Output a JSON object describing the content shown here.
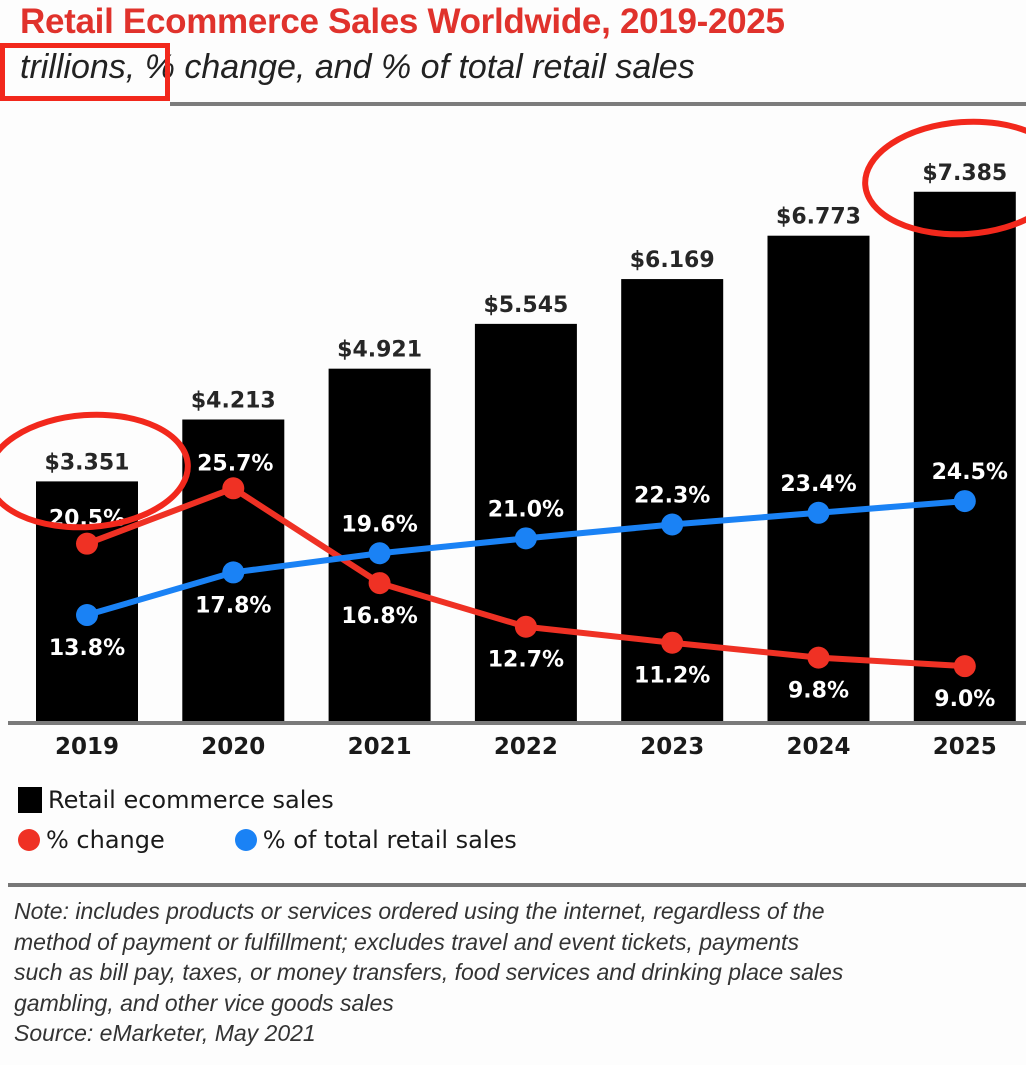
{
  "chart_data": {
    "type": "bar",
    "title": "Retail Ecommerce Sales Worldwide, 2019-2025",
    "subtitle_highlight": "trillions,",
    "subtitle_rest": " % change, and % of total retail sales",
    "categories": [
      "2019",
      "2020",
      "2021",
      "2022",
      "2023",
      "2024",
      "2025"
    ],
    "series": [
      {
        "name": "Retail ecommerce sales",
        "type": "bar",
        "unit": "trillions",
        "color": "#000000",
        "values": [
          3.351,
          4.213,
          4.921,
          5.545,
          6.169,
          6.773,
          7.385
        ],
        "labels": [
          "$3.351",
          "$4.213",
          "$4.921",
          "$5.545",
          "$6.169",
          "$6.773",
          "$7.385"
        ]
      },
      {
        "name": "% change",
        "type": "line",
        "color": "#ef3124",
        "values": [
          20.5,
          25.7,
          16.8,
          12.7,
          11.2,
          9.8,
          9.0
        ],
        "labels": [
          "20.5%",
          "25.7%",
          "16.8%",
          "12.7%",
          "11.2%",
          "9.8%",
          "9.0%"
        ]
      },
      {
        "name": "% of total retail sales",
        "type": "line",
        "color": "#1a82f5",
        "values": [
          13.8,
          17.8,
          19.6,
          21.0,
          22.3,
          23.4,
          24.5
        ],
        "labels": [
          "13.8%",
          "17.8%",
          "19.6%",
          "21.0%",
          "22.3%",
          "23.4%",
          "24.5%"
        ]
      }
    ],
    "legend": {
      "placement": "bottom-left",
      "items": [
        "Retail ecommerce sales",
        "% change",
        "% of total retail sales"
      ]
    },
    "annotation_color": "#f2281c",
    "highlighted_categories": [
      "2019",
      "2025"
    ],
    "grid": false
  },
  "note": {
    "lines": [
      "Note: includes products or services ordered using the internet, regardless of the",
      "method of payment or fulfillment; excludes travel and event tickets, payments",
      "such as bill pay, taxes, or money transfers, food services and drinking place sales",
      "gambling, and other vice goods sales"
    ],
    "source": "Source: eMarketer, May 2021"
  }
}
